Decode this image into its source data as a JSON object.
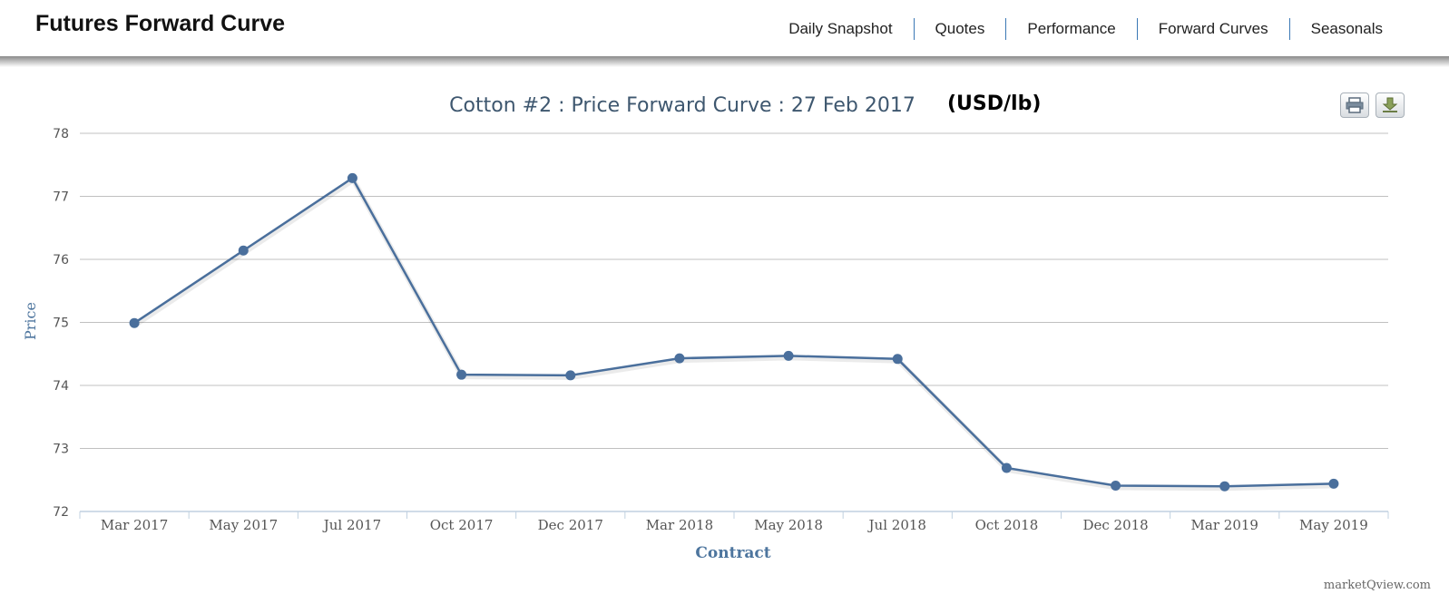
{
  "header": {
    "title": "Futures Forward Curve",
    "nav": [
      "Daily Snapshot",
      "Quotes",
      "Performance",
      "Forward Curves",
      "Seasonals"
    ]
  },
  "toolbar": {
    "print_icon": "print-icon",
    "download_icon": "download-icon"
  },
  "annotation": {
    "unit": "(USD/lb)"
  },
  "footer": {
    "watermark": "marketQview.com"
  },
  "colors": {
    "series": "#4a6f9c",
    "grid": "#c0c0c0",
    "axis_title": "#4d759e",
    "title": "#3e576f"
  },
  "chart_data": {
    "type": "line",
    "title": "Cotton #2 : Price Forward Curve : 27 Feb 2017",
    "xlabel": "Contract",
    "ylabel": "Price",
    "categories": [
      "Mar 2017",
      "May 2017",
      "Jul 2017",
      "Oct 2017",
      "Dec 2017",
      "Mar 2018",
      "May 2018",
      "Jul 2018",
      "Oct 2018",
      "Dec 2018",
      "Mar 2019",
      "May 2019"
    ],
    "series": [
      {
        "values": [
          74.99,
          76.14,
          77.29,
          74.17,
          74.16,
          74.43,
          74.47,
          74.42,
          72.69,
          72.41,
          72.4,
          72.44
        ]
      }
    ],
    "ylim": [
      72,
      78
    ],
    "yticks": [
      72,
      73,
      74,
      75,
      76,
      77,
      78
    ],
    "grid": true,
    "legend": "none"
  }
}
